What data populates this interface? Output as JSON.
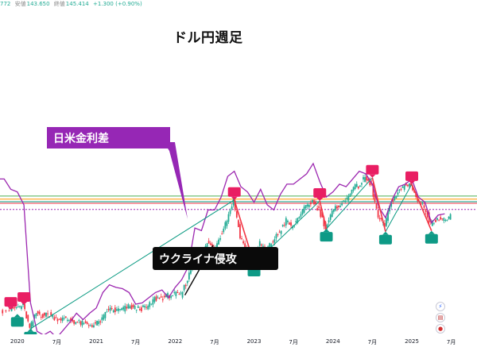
{
  "header": {
    "partial": "772",
    "high_label": "安値",
    "high_value": "143.650",
    "close_label": "終値",
    "close_value": "145.414",
    "change": "+1.300 (+0.90%)"
  },
  "title": "ドル円週足",
  "annotations": {
    "rate_diff_label": "日米金利差",
    "invasion_label": "ウクライナ侵攻"
  },
  "side_icons": [
    "lightning-icon",
    "us-flag-icon",
    "jp-flag-icon"
  ],
  "colors": {
    "up": "#22ab94",
    "down": "#f23645",
    "rate_diff": "#9c27b0",
    "trend": "#089981",
    "peak_marker": "#e91e63",
    "trough_marker": "#0e9a86"
  },
  "chart_data": {
    "type": "line",
    "x_tick_labels": [
      "2020",
      "7月",
      "2021",
      "7月",
      "2022",
      "7月",
      "2023",
      "7月",
      "2024",
      "7月",
      "2025",
      "7月"
    ],
    "x_range": [
      "2019-10",
      "2025-10"
    ],
    "y_range_jpy": [
      100,
      165
    ],
    "series": [
      {
        "role": "usd_jpy_weekly",
        "points": [
          [
            "2019-10",
            108.5
          ],
          [
            "2019-12",
            109.3
          ],
          [
            "2020-01",
            110.2
          ],
          [
            "2020-02",
            111.2
          ],
          [
            "2020-03",
            102.0
          ],
          [
            "2020-04",
            108.0
          ],
          [
            "2020-05",
            107.2
          ],
          [
            "2020-06",
            107.5
          ],
          [
            "2020-07",
            106.0
          ],
          [
            "2020-08",
            105.8
          ],
          [
            "2020-09",
            105.4
          ],
          [
            "2020-10",
            104.6
          ],
          [
            "2020-11",
            104.0
          ],
          [
            "2020-12",
            103.3
          ],
          [
            "2021-01",
            103.7
          ],
          [
            "2021-02",
            105.5
          ],
          [
            "2021-03",
            109.7
          ],
          [
            "2021-04",
            108.9
          ],
          [
            "2021-05",
            109.5
          ],
          [
            "2021-06",
            110.5
          ],
          [
            "2021-07",
            110.0
          ],
          [
            "2021-08",
            109.8
          ],
          [
            "2021-09",
            110.5
          ],
          [
            "2021-10",
            113.6
          ],
          [
            "2021-11",
            113.8
          ],
          [
            "2021-12",
            114.8
          ],
          [
            "2022-01",
            115.3
          ],
          [
            "2022-02",
            115.0
          ],
          [
            "2022-03",
            121.0
          ],
          [
            "2022-04",
            129.0
          ],
          [
            "2022-05",
            127.5
          ],
          [
            "2022-06",
            135.5
          ],
          [
            "2022-07",
            133.0
          ],
          [
            "2022-08",
            138.0
          ],
          [
            "2022-09",
            144.5
          ],
          [
            "2022-10",
            151.9
          ],
          [
            "2022-11",
            138.0
          ],
          [
            "2022-12",
            132.0
          ],
          [
            "2023-01",
            127.2
          ],
          [
            "2023-02",
            135.0
          ],
          [
            "2023-03",
            132.5
          ],
          [
            "2023-04",
            136.0
          ],
          [
            "2023-05",
            139.5
          ],
          [
            "2023-06",
            144.0
          ],
          [
            "2023-07",
            141.0
          ],
          [
            "2023-08",
            146.0
          ],
          [
            "2023-09",
            149.0
          ],
          [
            "2023-10",
            151.5
          ],
          [
            "2023-11",
            148.0
          ],
          [
            "2023-12",
            141.0
          ],
          [
            "2024-01",
            147.0
          ],
          [
            "2024-02",
            150.0
          ],
          [
            "2024-03",
            151.3
          ],
          [
            "2024-04",
            156.5
          ],
          [
            "2024-05",
            157.2
          ],
          [
            "2024-06",
            160.5
          ],
          [
            "2024-07",
            157.0
          ],
          [
            "2024-08",
            145.0
          ],
          [
            "2024-09",
            142.0
          ],
          [
            "2024-10",
            151.5
          ],
          [
            "2024-11",
            154.5
          ],
          [
            "2024-12",
            157.5
          ],
          [
            "2025-01",
            158.0
          ],
          [
            "2025-02",
            151.5
          ],
          [
            "2025-03",
            149.5
          ],
          [
            "2025-04",
            142.5
          ],
          [
            "2025-05",
            145.0
          ],
          [
            "2025-06",
            144.0
          ],
          [
            "2025-07",
            145.4
          ]
        ]
      },
      {
        "role": "us_jp_rate_differential",
        "points": [
          [
            "2019-10",
            160.0
          ],
          [
            "2019-11",
            160.0
          ],
          [
            "2019-12",
            156.0
          ],
          [
            "2020-01",
            155.0
          ],
          [
            "2020-02",
            150.0
          ],
          [
            "2020-03",
            112.0
          ],
          [
            "2020-04",
            101.0
          ],
          [
            "2020-05",
            99.5
          ],
          [
            "2020-06",
            101.0
          ],
          [
            "2020-07",
            98.5
          ],
          [
            "2020-08",
            101.5
          ],
          [
            "2020-09",
            104.5
          ],
          [
            "2020-10",
            108.0
          ],
          [
            "2020-11",
            105.5
          ],
          [
            "2020-12",
            108.0
          ],
          [
            "2021-01",
            110.0
          ],
          [
            "2021-02",
            116.0
          ],
          [
            "2021-03",
            119.0
          ],
          [
            "2021-04",
            118.0
          ],
          [
            "2021-05",
            117.5
          ],
          [
            "2021-06",
            116.0
          ],
          [
            "2021-07",
            111.5
          ],
          [
            "2021-08",
            112.0
          ],
          [
            "2021-09",
            114.0
          ],
          [
            "2021-10",
            116.0
          ],
          [
            "2021-11",
            117.0
          ],
          [
            "2021-12",
            114.0
          ],
          [
            "2022-01",
            118.0
          ],
          [
            "2022-02",
            121.0
          ],
          [
            "2022-03",
            126.0
          ],
          [
            "2022-04",
            141.0
          ],
          [
            "2022-05",
            140.0
          ],
          [
            "2022-06",
            148.0
          ],
          [
            "2022-07",
            148.0
          ],
          [
            "2022-08",
            153.0
          ],
          [
            "2022-09",
            161.0
          ],
          [
            "2022-10",
            163.0
          ],
          [
            "2022-11",
            157.0
          ],
          [
            "2022-12",
            155.0
          ],
          [
            "2023-01",
            151.0
          ],
          [
            "2023-02",
            156.0
          ],
          [
            "2023-03",
            150.0
          ],
          [
            "2023-04",
            148.0
          ],
          [
            "2023-05",
            154.0
          ],
          [
            "2023-06",
            158.0
          ],
          [
            "2023-07",
            158.0
          ],
          [
            "2023-08",
            160.0
          ],
          [
            "2023-09",
            162.0
          ],
          [
            "2023-10",
            166.0
          ],
          [
            "2023-11",
            159.0
          ],
          [
            "2023-12",
            153.0
          ],
          [
            "2024-01",
            155.0
          ],
          [
            "2024-02",
            158.0
          ],
          [
            "2024-03",
            157.0
          ],
          [
            "2024-04",
            160.0
          ],
          [
            "2024-05",
            163.0
          ],
          [
            "2024-06",
            162.0
          ],
          [
            "2024-07",
            158.0
          ],
          [
            "2024-08",
            149.0
          ],
          [
            "2024-09",
            145.0
          ],
          [
            "2024-10",
            152.0
          ],
          [
            "2024-11",
            157.0
          ],
          [
            "2024-12",
            158.0
          ],
          [
            "2025-01",
            160.0
          ],
          [
            "2025-02",
            153.0
          ],
          [
            "2025-03",
            151.0
          ],
          [
            "2025-04",
            143.0
          ],
          [
            "2025-05",
            146.0
          ],
          [
            "2025-06",
            146.5
          ]
        ]
      }
    ],
    "horizontal_levels": [
      {
        "value": 150.6,
        "color": "#f23645"
      },
      {
        "value": 151.2,
        "color": "#089981"
      },
      {
        "value": 152.2,
        "color": "#ff9800"
      },
      {
        "value": 153.4,
        "color": "#4caf50"
      },
      {
        "value": 148.2,
        "color": "#9c27b0",
        "dashed": true
      }
    ],
    "peaks": [
      [
        "2019-12",
        109.3
      ],
      [
        "2020-02",
        111.2
      ],
      [
        "2022-10",
        151.9
      ],
      [
        "2023-11",
        151.5
      ],
      [
        "2024-07",
        160.5
      ],
      [
        "2025-01",
        158.0
      ]
    ],
    "troughs": [
      [
        "2020-01",
        107.7
      ],
      [
        "2020-03",
        102.0
      ],
      [
        "2023-01",
        127.2
      ],
      [
        "2023-12",
        140.7
      ],
      [
        "2024-09",
        139.6
      ],
      [
        "2025-04",
        139.9
      ]
    ],
    "trend_lines": [
      [
        [
          "2020-03",
          102.0
        ],
        [
          "2022-10",
          151.9
        ]
      ],
      [
        [
          "2023-01",
          127.2
        ],
        [
          "2023-11",
          151.5
        ]
      ],
      [
        [
          "2023-12",
          140.7
        ],
        [
          "2024-07",
          160.5
        ]
      ],
      [
        [
          "2024-09",
          139.6
        ],
        [
          "2025-01",
          158.0
        ]
      ]
    ],
    "down_legs": [
      [
        [
          "2022-10",
          151.9
        ],
        [
          "2023-01",
          127.2
        ]
      ],
      [
        [
          "2023-11",
          151.5
        ],
        [
          "2023-12",
          140.7
        ]
      ],
      [
        [
          "2024-07",
          160.5
        ],
        [
          "2024-09",
          139.6
        ]
      ],
      [
        [
          "2025-01",
          158.0
        ],
        [
          "2025-04",
          139.9
        ]
      ]
    ],
    "events": [
      {
        "date": "2022-02",
        "value": 115.0,
        "label_key": "invasion_label"
      },
      {
        "date": "2022-09",
        "value": 144.5,
        "label_key": "rate_diff_label"
      }
    ]
  }
}
